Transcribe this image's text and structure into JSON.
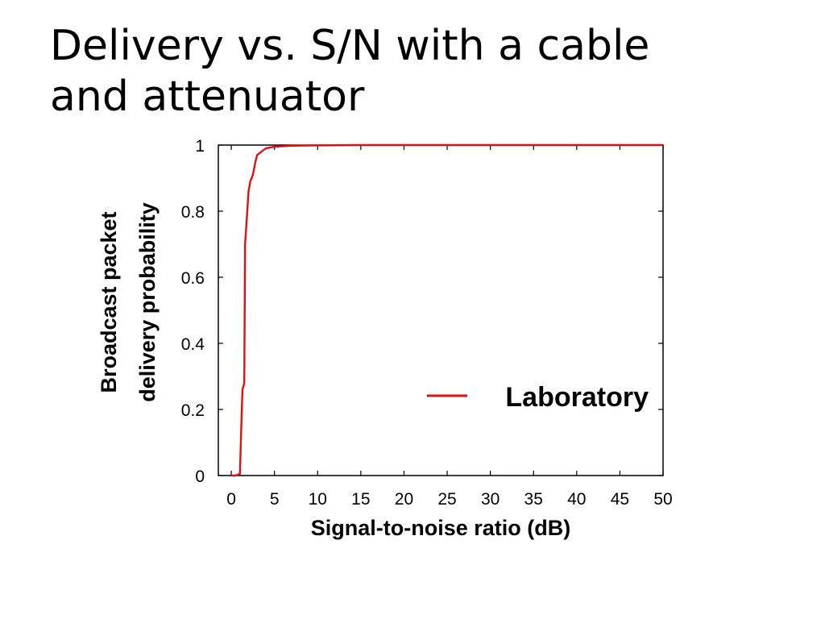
{
  "slide": {
    "title_line1": "Delivery vs. S/N with a cable",
    "title_line2": "and attenuator"
  },
  "chart_data": {
    "type": "line",
    "xlabel": "Signal-to-noise ratio (dB)",
    "ylabel_line1": "Broadcast packet",
    "ylabel_line2": "delivery probability",
    "xlim": [
      -1.5,
      50
    ],
    "ylim": [
      0,
      1
    ],
    "xticks": [
      0,
      5,
      10,
      15,
      20,
      25,
      30,
      35,
      40,
      45,
      50
    ],
    "yticks": [
      0,
      0.2,
      0.4,
      0.6,
      0.8,
      1
    ],
    "ytick_labels": [
      "0",
      "0.2",
      "0.4",
      "0.6",
      "0.8",
      "1"
    ],
    "grid": false,
    "legend_position": "center-right",
    "series": [
      {
        "name": "Laboratory",
        "color": "#dd1111",
        "x": [
          0,
          0.5,
          1.0,
          1.2,
          1.3,
          1.5,
          1.6,
          1.8,
          2.0,
          2.2,
          2.5,
          2.8,
          3.0,
          3.5,
          4.0,
          5.0,
          7.0,
          10.0,
          15.0,
          20.0,
          30.0,
          40.0,
          50.0
        ],
        "y": [
          0,
          0,
          0.005,
          0.18,
          0.26,
          0.28,
          0.7,
          0.78,
          0.86,
          0.89,
          0.91,
          0.95,
          0.97,
          0.98,
          0.99,
          0.995,
          0.998,
          0.999,
          1.0,
          1.0,
          1.0,
          1.0,
          1.0
        ]
      }
    ]
  }
}
